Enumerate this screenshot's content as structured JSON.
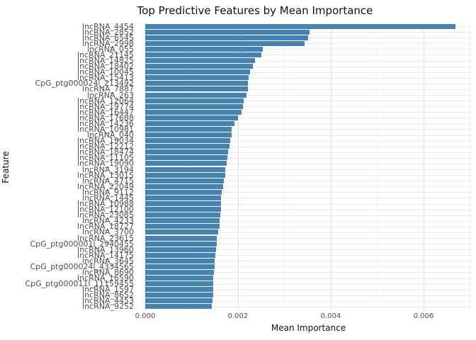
{
  "chart_data": {
    "type": "bar",
    "orientation": "horizontal",
    "title": "Top Predictive Features by Mean Importance",
    "xlabel": "Mean Importance",
    "ylabel": "Feature",
    "xlim": [
      0,
      0.00704
    ],
    "xticks": [
      0.0,
      0.002,
      0.004,
      0.006
    ],
    "xtick_labels": [
      "0.000",
      "0.002",
      "0.004",
      "0.006"
    ],
    "xticks_minor": [
      0.001,
      0.003,
      0.005,
      0.007
    ],
    "grid": true,
    "legend": false,
    "bar_color": "#4682B4",
    "categories": [
      "lncRNA_4454",
      "lncRNA_2852",
      "lncRNA_6545",
      "lncRNA_2998",
      "lncRNA_055",
      "lncRNA_21145",
      "lncRNA_14825",
      "lncRNA_18402",
      "lncRNA_10045",
      "lncRNA_15413",
      "CpG_ptg000024l_213492",
      "lncRNA_7887",
      "lncRNA_263",
      "lncRNA_12064",
      "lncRNA_19774",
      "lncRNA_16447",
      "lncRNA_17688",
      "lncRNA_14236",
      "lncRNA_10981",
      "lncRNA_040",
      "lncRNA_19034",
      "lncRNA_12212",
      "lncRNA_18474",
      "lncRNA_11105",
      "lncRNA_19090",
      "lncRNA_3194",
      "lncRNA_13015",
      "lncRNA_4715",
      "lncRNA_22049",
      "lncRNA_9112",
      "lncRNA_1445",
      "lncRNA_10988",
      "lncRNA_12100",
      "lncRNA_23085",
      "lncRNA_4233",
      "lncRNA_18727",
      "lncRNA_3700",
      "lncRNA_23615",
      "CpG_ptg000001l_2940455",
      "lncRNA_13960",
      "lncRNA_14175",
      "lncRNA_3645",
      "CpG_ptg000024l_4334565",
      "lncRNA_8690",
      "lncRNA_16590",
      "CpG_ptg000011l_11159455",
      "lncRNA_1597",
      "lncRNA_8652",
      "lncRNA_4453",
      "lncRNA_9252"
    ],
    "values": [
      0.00669,
      0.00355,
      0.00351,
      0.00344,
      0.00253,
      0.0025,
      0.00236,
      0.00232,
      0.00226,
      0.00223,
      0.00222,
      0.00221,
      0.00219,
      0.00213,
      0.0021,
      0.00207,
      0.002,
      0.00192,
      0.00187,
      0.00186,
      0.00184,
      0.00182,
      0.00179,
      0.00177,
      0.00176,
      0.00173,
      0.00172,
      0.00169,
      0.00168,
      0.00165,
      0.00164,
      0.00164,
      0.00163,
      0.00162,
      0.00161,
      0.0016,
      0.00158,
      0.00155,
      0.00154,
      0.00153,
      0.00151,
      0.0015,
      0.00149,
      0.00148,
      0.00147,
      0.00146,
      0.00146,
      0.00146,
      0.00145,
      0.00144
    ]
  },
  "colors": {
    "background": "#FFFFFF",
    "bar": "#4682B4",
    "grid_major": "#DEDEDE",
    "grid_minor": "#F0F0F0",
    "grid_row": "#E9E9E9",
    "tick_text": "#4D4D4D",
    "title_text": "#111111"
  }
}
